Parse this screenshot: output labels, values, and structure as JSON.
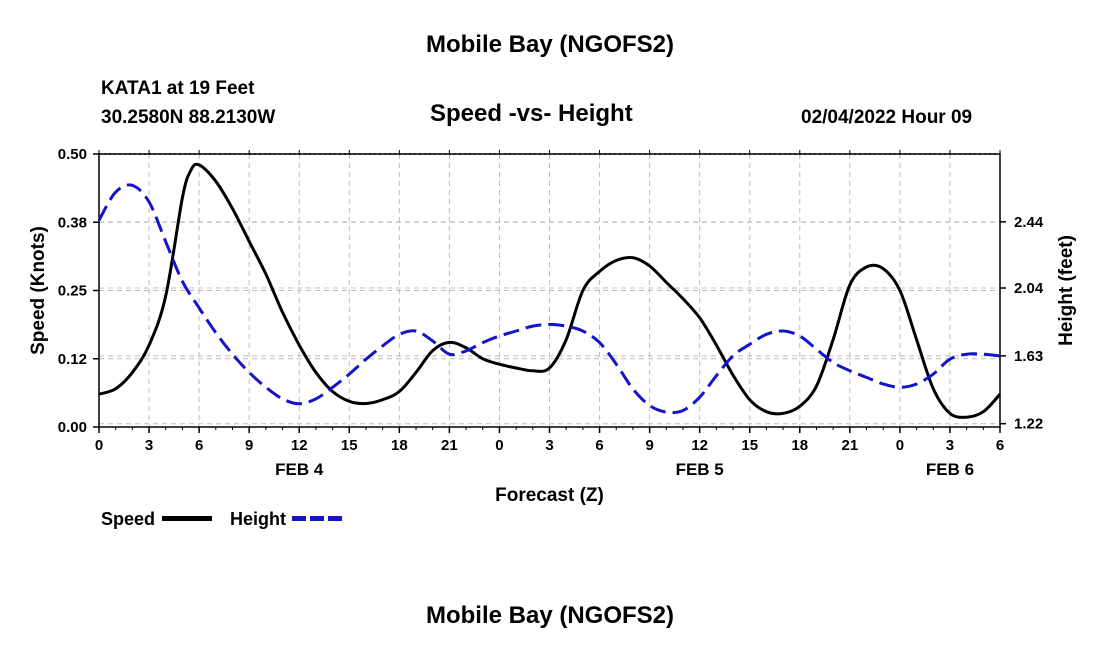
{
  "header": {
    "title_top": "Mobile Bay (NGOFS2)",
    "station": "KATA1 at 19 Feet",
    "coords": "30.2580N  88.2130W",
    "chart_title": "Speed -vs- Height",
    "datetime": "02/04/2022 Hour 09",
    "title_bottom": "Mobile Bay (NGOFS2)"
  },
  "legend": {
    "speed_label": "Speed",
    "height_label": "Height"
  },
  "chart_data": {
    "type": "line",
    "title": "Speed -vs- Height",
    "xlabel": "Forecast (Z)",
    "ylabel_left": "Speed (Knots)",
    "ylabel_right": "Height (feet)",
    "x_tick_labels": [
      "0",
      "3",
      "6",
      "9",
      "12",
      "15",
      "18",
      "21",
      "0",
      "3",
      "6",
      "9",
      "12",
      "15",
      "18",
      "21",
      "0",
      "3",
      "6"
    ],
    "date_labels": [
      {
        "label": "FEB 4",
        "hour": 12
      },
      {
        "label": "FEB 5",
        "hour": 36
      },
      {
        "label": "FEB 6",
        "hour": 51
      }
    ],
    "xlim": [
      0,
      54
    ],
    "y_left_ticks": [
      "0.00",
      "0.12",
      "0.25",
      "0.38",
      "0.50"
    ],
    "y_left_lim": [
      0,
      0.5
    ],
    "y_right_ticks": [
      "1.22",
      "1.63",
      "2.04",
      "2.44"
    ],
    "y_right_lim": [
      1.2,
      2.85
    ],
    "grid": true,
    "legend_position": "bottom-left",
    "series": [
      {
        "name": "Speed",
        "axis": "left",
        "color": "#000000",
        "style": "solid",
        "x": [
          0,
          1,
          2,
          3,
          4,
          5,
          5.5,
          6,
          7,
          8,
          9,
          10,
          11,
          12,
          13,
          14,
          15,
          16,
          17,
          18,
          19,
          20,
          21,
          22,
          23,
          24,
          25,
          26,
          27,
          28,
          29,
          30,
          31,
          32,
          33,
          34,
          35,
          36,
          37,
          38,
          39,
          40,
          41,
          42,
          43,
          44,
          45,
          46,
          47,
          48,
          49,
          50,
          51,
          52,
          53,
          54
        ],
        "values": [
          0.06,
          0.07,
          0.1,
          0.15,
          0.24,
          0.42,
          0.47,
          0.48,
          0.45,
          0.4,
          0.34,
          0.28,
          0.21,
          0.15,
          0.1,
          0.065,
          0.047,
          0.043,
          0.05,
          0.065,
          0.1,
          0.14,
          0.155,
          0.145,
          0.125,
          0.115,
          0.108,
          0.103,
          0.108,
          0.16,
          0.25,
          0.285,
          0.305,
          0.31,
          0.295,
          0.265,
          0.235,
          0.2,
          0.15,
          0.095,
          0.05,
          0.028,
          0.025,
          0.038,
          0.075,
          0.16,
          0.26,
          0.293,
          0.29,
          0.25,
          0.16,
          0.07,
          0.025,
          0.018,
          0.028,
          0.06
        ]
      },
      {
        "name": "Height",
        "axis": "right",
        "color": "#1414c8",
        "style": "dashed",
        "x": [
          0,
          1,
          2,
          3,
          4,
          5,
          6,
          7,
          8,
          9,
          10,
          11,
          12,
          13,
          14,
          15,
          16,
          17,
          18,
          19,
          20,
          21,
          22,
          23,
          24,
          25,
          26,
          27,
          28,
          29,
          30,
          31,
          32,
          33,
          34,
          35,
          36,
          37,
          38,
          39,
          40,
          41,
          42,
          43,
          44,
          45,
          46,
          47,
          48,
          49,
          50,
          51,
          52,
          53,
          54
        ],
        "values": [
          2.45,
          2.62,
          2.66,
          2.56,
          2.32,
          2.08,
          1.92,
          1.77,
          1.64,
          1.53,
          1.44,
          1.37,
          1.34,
          1.37,
          1.44,
          1.52,
          1.61,
          1.69,
          1.76,
          1.78,
          1.72,
          1.64,
          1.66,
          1.71,
          1.75,
          1.78,
          1.81,
          1.82,
          1.81,
          1.78,
          1.71,
          1.58,
          1.43,
          1.33,
          1.29,
          1.3,
          1.38,
          1.51,
          1.63,
          1.7,
          1.76,
          1.78,
          1.75,
          1.67,
          1.59,
          1.54,
          1.5,
          1.46,
          1.44,
          1.46,
          1.52,
          1.61,
          1.64,
          1.64,
          1.63
        ]
      }
    ]
  }
}
